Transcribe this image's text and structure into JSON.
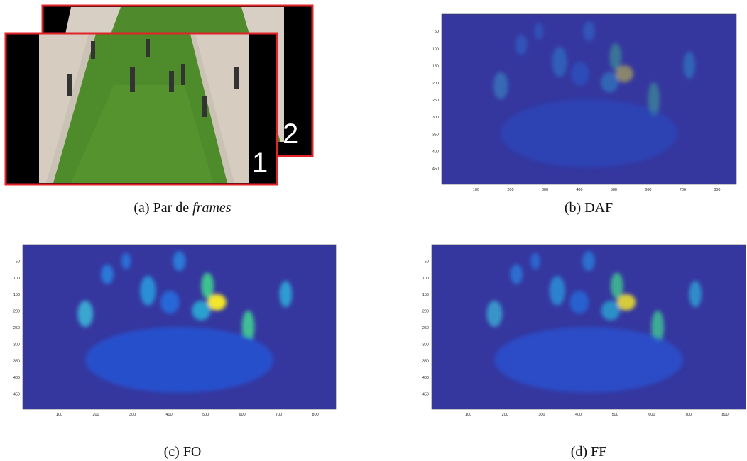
{
  "panels": [
    {
      "caption": {
        "label": "(a)",
        "text": "Par de",
        "emphasis": "frames"
      },
      "frames": [
        "1",
        "2"
      ]
    },
    {
      "caption": {
        "label": "(b)",
        "text": "DAF"
      },
      "axes": {
        "xlim": [
          0,
          856
        ],
        "ylim": [
          0,
          496
        ],
        "xticks": [
          100,
          200,
          300,
          400,
          500,
          600,
          700,
          800
        ],
        "yticks": [
          50,
          100,
          150,
          200,
          250,
          300,
          350,
          400,
          450
        ]
      }
    },
    {
      "caption": {
        "label": "(c)",
        "text": "FO"
      },
      "axes": {
        "xlim": [
          0,
          856
        ],
        "ylim": [
          0,
          496
        ],
        "xticks": [
          100,
          200,
          300,
          400,
          500,
          600,
          700,
          800
        ],
        "yticks": [
          50,
          100,
          150,
          200,
          250,
          300,
          350,
          400,
          450
        ]
      }
    },
    {
      "caption": {
        "label": "(d)",
        "text": "FF"
      },
      "axes": {
        "xlim": [
          0,
          856
        ],
        "ylim": [
          0,
          496
        ],
        "xticks": [
          100,
          200,
          300,
          400,
          500,
          600,
          700,
          800
        ],
        "yticks": [
          50,
          100,
          150,
          200,
          250,
          300,
          350,
          400,
          450
        ]
      }
    }
  ]
}
